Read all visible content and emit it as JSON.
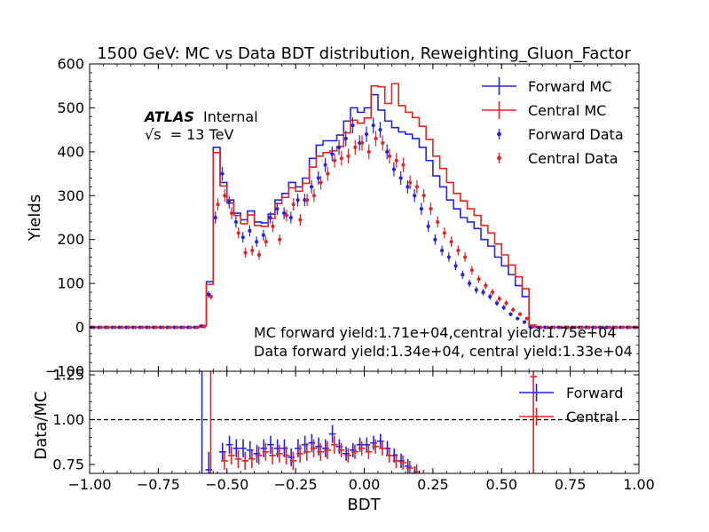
{
  "chart_data": [
    {
      "type": "line",
      "panel": "main",
      "title": "1500 GeV: MC vs Data BDT distribution, Reweighting_Gluon_Factor",
      "xlabel": "",
      "ylabel": "Yields",
      "xlim": [
        -1.0,
        1.0
      ],
      "ylim": [
        -100,
        600
      ],
      "yticks": [
        -100,
        0,
        100,
        200,
        300,
        400,
        500,
        600
      ],
      "ytick_labels": [
        "−100",
        "0",
        "100",
        "200",
        "300",
        "400",
        "500",
        "600"
      ],
      "bins": {
        "low": -1.0,
        "high": 1.0,
        "count": 80
      },
      "legend_position": "top-right",
      "grid": false,
      "series": [
        {
          "name": "Forward MC",
          "style": "step",
          "color": "#2323e6",
          "values": [
            0,
            0,
            0,
            0,
            0,
            0,
            0,
            0,
            0,
            0,
            0,
            0,
            0,
            0,
            0,
            0,
            4,
            104,
            410,
            330,
            290,
            260,
            245,
            265,
            240,
            238,
            258,
            290,
            305,
            330,
            320,
            340,
            385,
            415,
            425,
            425,
            438,
            470,
            500,
            490,
            500,
            530,
            495,
            470,
            455,
            445,
            440,
            430,
            410,
            380,
            345,
            320,
            290,
            270,
            250,
            240,
            225,
            200,
            185,
            160,
            140,
            120,
            95,
            70,
            0,
            0,
            0,
            0,
            0,
            0,
            0,
            0,
            0,
            0,
            0,
            0,
            0,
            0,
            0,
            0
          ]
        },
        {
          "name": "Central MC",
          "style": "step",
          "color": "#e62323",
          "values": [
            0,
            0,
            0,
            0,
            0,
            0,
            0,
            0,
            0,
            0,
            0,
            0,
            0,
            0,
            0,
            0,
            4,
            98,
            398,
            322,
            283,
            255,
            236,
            256,
            232,
            230,
            248,
            282,
            296,
            318,
            310,
            328,
            365,
            390,
            398,
            402,
            412,
            443,
            472,
            465,
            477,
            550,
            548,
            510,
            555,
            505,
            490,
            478,
            458,
            428,
            390,
            362,
            330,
            305,
            288,
            270,
            255,
            232,
            215,
            190,
            165,
            142,
            115,
            88,
            5,
            0,
            0,
            0,
            0,
            0,
            0,
            0,
            0,
            0,
            0,
            0,
            0,
            0,
            0,
            0
          ]
        },
        {
          "name": "Forward Data",
          "style": "points",
          "color": "#2323e6",
          "offset": -0.0045,
          "values": [
            0,
            0,
            0,
            0,
            0,
            0,
            0,
            0,
            0,
            0,
            0,
            0,
            0,
            0,
            0,
            0,
            3,
            75,
            250,
            350,
            285,
            240,
            205,
            220,
            195,
            210,
            250,
            270,
            260,
            250,
            290,
            290,
            320,
            340,
            370,
            395,
            410,
            430,
            460,
            420,
            440,
            460,
            450,
            400,
            360,
            340,
            320,
            300,
            270,
            230,
            200,
            175,
            160,
            140,
            120,
            100,
            85,
            80,
            70,
            55,
            45,
            30,
            20,
            12,
            0,
            0,
            0,
            0,
            0,
            0,
            0,
            0,
            0,
            0,
            0,
            0,
            0,
            0,
            0,
            0
          ]
        },
        {
          "name": "Central Data",
          "style": "points",
          "color": "#e62323",
          "offset": 0.0045,
          "values": [
            0,
            0,
            0,
            0,
            0,
            0,
            0,
            0,
            0,
            0,
            0,
            0,
            0,
            0,
            0,
            0,
            2,
            70,
            280,
            300,
            260,
            215,
            170,
            175,
            165,
            195,
            230,
            200,
            255,
            280,
            245,
            290,
            300,
            330,
            350,
            380,
            385,
            390,
            410,
            420,
            400,
            430,
            420,
            390,
            380,
            370,
            330,
            320,
            300,
            270,
            240,
            215,
            195,
            175,
            160,
            130,
            110,
            95,
            80,
            65,
            55,
            40,
            30,
            20,
            3,
            0,
            0,
            0,
            0,
            0,
            0,
            0,
            0,
            0,
            0,
            0,
            0,
            0,
            0,
            0
          ]
        }
      ],
      "annotations": [
        "MC forward yield:1.71e+04,central yield:1.75e+04",
        "Data forward yield:1.34e+04, central yield:1.33e+04"
      ],
      "experiment_label": {
        "bold": "ATLAS",
        "normal": "Internal",
        "energy_prefix": "√s",
        "energy_value": "= 13 TeV"
      }
    },
    {
      "type": "line",
      "panel": "ratio",
      "xlabel": "BDT",
      "ylabel": "Data/MC",
      "xlim": [
        -1.0,
        1.0
      ],
      "ylim": [
        0.7,
        1.27
      ],
      "xticks": [
        -1.0,
        -0.75,
        -0.5,
        -0.25,
        0.0,
        0.25,
        0.5,
        0.75,
        1.0
      ],
      "xtick_labels": [
        "−1.00",
        "−0.75",
        "−0.50",
        "−0.25",
        "0.00",
        "0.25",
        "0.50",
        "0.75",
        "1.00"
      ],
      "yticks": [
        0.75,
        1.0,
        1.25
      ],
      "ytick_labels": [
        "0.75",
        "1.00",
        "1.25"
      ],
      "reference_line": 1.0,
      "legend_position": "top-right",
      "bins": {
        "low": -1.0,
        "high": 1.0,
        "count": 80
      },
      "series": [
        {
          "name": "Forward",
          "style": "errorstep",
          "color": "#2323e6",
          "offset": -0.0035,
          "values": [
            null,
            null,
            null,
            null,
            null,
            null,
            null,
            null,
            null,
            null,
            null,
            null,
            null,
            null,
            null,
            null,
            1.5,
            0.72,
            0.61,
            0.82,
            0.86,
            0.84,
            0.84,
            0.83,
            0.81,
            0.84,
            0.86,
            0.84,
            0.84,
            0.79,
            0.84,
            0.86,
            0.87,
            0.85,
            0.84,
            0.92,
            0.85,
            0.81,
            0.83,
            0.86,
            0.86,
            0.87,
            0.88,
            0.84,
            0.8,
            0.77,
            0.74,
            0.7,
            0.66,
            0.62,
            0.58,
            null,
            null,
            null,
            null,
            null,
            null,
            null,
            null,
            null,
            null,
            null,
            null,
            null,
            null,
            null,
            null,
            null,
            null,
            null,
            null,
            null,
            null,
            null,
            null,
            null,
            null,
            null,
            null,
            null
          ],
          "errors": [
            0,
            0,
            0,
            0,
            0,
            0,
            0,
            0,
            0,
            0,
            0,
            0,
            0,
            0,
            0,
            0,
            1.0,
            0.1,
            0.04,
            0.05,
            0.05,
            0.05,
            0.05,
            0.05,
            0.05,
            0.05,
            0.05,
            0.05,
            0.05,
            0.05,
            0.05,
            0.05,
            0.05,
            0.05,
            0.05,
            0.05,
            0.04,
            0.04,
            0.04,
            0.04,
            0.04,
            0.04,
            0.04,
            0.04,
            0.04,
            0.04,
            0.04,
            0.04,
            0.04,
            0.04,
            0.04,
            0,
            0,
            0,
            0,
            0,
            0,
            0,
            0,
            0,
            0,
            0,
            0,
            0,
            0,
            0,
            0,
            0,
            0,
            0,
            0,
            0,
            0,
            0,
            0,
            0,
            0,
            0,
            0,
            0
          ]
        },
        {
          "name": "Central",
          "style": "errorstep",
          "color": "#e62323",
          "offset": 0.0035,
          "values": [
            null,
            null,
            null,
            null,
            null,
            null,
            null,
            null,
            null,
            null,
            null,
            null,
            null,
            null,
            null,
            null,
            null,
            1.5,
            0.67,
            0.77,
            0.8,
            0.78,
            0.77,
            0.78,
            0.8,
            0.82,
            0.8,
            0.81,
            0.8,
            0.77,
            0.81,
            0.82,
            0.84,
            0.82,
            0.83,
            0.86,
            0.83,
            0.8,
            0.82,
            0.84,
            0.82,
            0.85,
            0.84,
            0.8,
            0.77,
            0.76,
            0.73,
            0.71,
            0.68,
            0.65,
            0.61,
            0.58,
            null,
            null,
            null,
            null,
            null,
            null,
            null,
            null,
            null,
            null,
            null,
            null,
            1.24,
            null,
            null,
            null,
            null,
            null,
            null,
            null,
            null,
            null,
            null,
            null,
            null,
            null,
            null,
            null
          ],
          "errors": [
            0,
            0,
            0,
            0,
            0,
            0,
            0,
            0,
            0,
            0,
            0,
            0,
            0,
            0,
            0,
            0,
            0,
            1.0,
            0.04,
            0.05,
            0.05,
            0.05,
            0.05,
            0.05,
            0.05,
            0.05,
            0.05,
            0.05,
            0.05,
            0.05,
            0.05,
            0.05,
            0.05,
            0.05,
            0.05,
            0.05,
            0.04,
            0.04,
            0.04,
            0.04,
            0.04,
            0.04,
            0.04,
            0.04,
            0.04,
            0.04,
            0.04,
            0.04,
            0.04,
            0.04,
            0.04,
            0.04,
            0,
            0,
            0,
            0,
            0,
            0,
            0,
            0,
            0,
            0,
            0,
            0,
            0.8,
            0,
            0,
            0,
            0,
            0,
            0,
            0,
            0,
            0,
            0,
            0,
            0,
            0,
            0,
            0
          ]
        }
      ]
    }
  ]
}
